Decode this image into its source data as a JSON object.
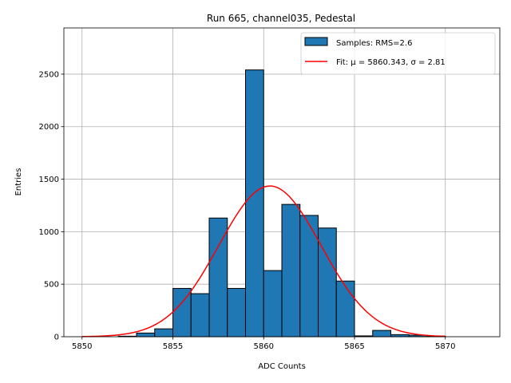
{
  "chart_data": {
    "type": "bar",
    "title": "Run 665, channel035, Pedestal",
    "xlabel": "ADC Counts",
    "ylabel": "Entries",
    "xlim": [
      5849,
      5873
    ],
    "ylim": [
      0,
      2940
    ],
    "grid": true,
    "xticks": [
      5850,
      5855,
      5860,
      5865,
      5870
    ],
    "yticks": [
      0,
      500,
      1000,
      1500,
      2000,
      2500
    ],
    "bar_color": "#1f77b4",
    "bar_edge_color": "#000000",
    "fit_color": "#ff0000",
    "bins": [
      {
        "start": 5852,
        "end": 5853,
        "count": 5
      },
      {
        "start": 5853,
        "end": 5854,
        "count": 35
      },
      {
        "start": 5854,
        "end": 5855,
        "count": 75
      },
      {
        "start": 5855,
        "end": 5856,
        "count": 460
      },
      {
        "start": 5856,
        "end": 5857,
        "count": 410
      },
      {
        "start": 5857,
        "end": 5858,
        "count": 1130
      },
      {
        "start": 5858,
        "end": 5859,
        "count": 460
      },
      {
        "start": 5859,
        "end": 5860,
        "count": 2540
      },
      {
        "start": 5860,
        "end": 5861,
        "count": 630
      },
      {
        "start": 5861,
        "end": 5862,
        "count": 1260
      },
      {
        "start": 5862,
        "end": 5863,
        "count": 1155
      },
      {
        "start": 5863,
        "end": 5864,
        "count": 1035
      },
      {
        "start": 5864,
        "end": 5865,
        "count": 530
      },
      {
        "start": 5865,
        "end": 5866,
        "count": 8
      },
      {
        "start": 5866,
        "end": 5867,
        "count": 60
      },
      {
        "start": 5867,
        "end": 5868,
        "count": 20
      },
      {
        "start": 5868,
        "end": 5869,
        "count": 15
      },
      {
        "start": 5869,
        "end": 5870,
        "count": 5
      }
    ],
    "fit": {
      "mu": 5860.343,
      "sigma": 2.81,
      "amplitude": 1435,
      "x_range": [
        5850,
        5870
      ]
    },
    "legend": {
      "position": "top-right",
      "entries": [
        {
          "label": "Samples: RMS=2.6",
          "kind": "patch"
        },
        {
          "label": "Fit: μ = 5860.343, σ = 2.81",
          "kind": "line"
        }
      ]
    }
  }
}
